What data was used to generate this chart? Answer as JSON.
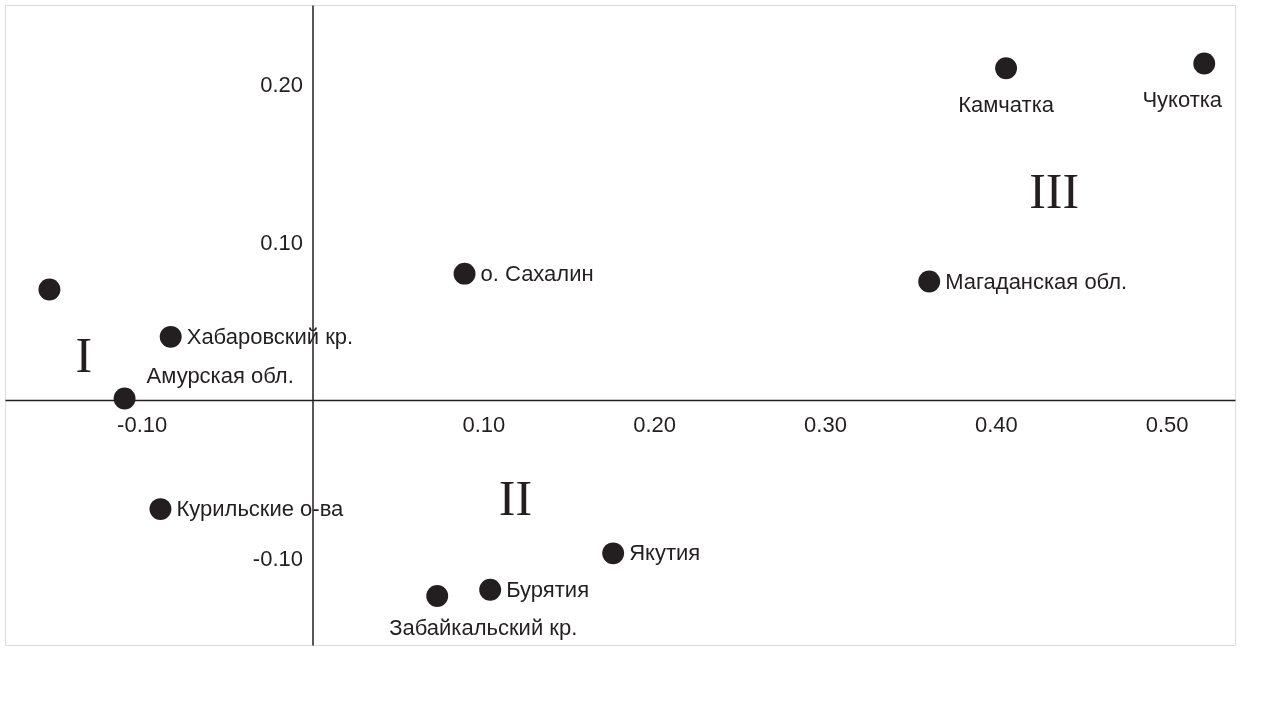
{
  "chart_data": {
    "type": "scatter",
    "x": [
      -0.154,
      -0.083,
      -0.11,
      -0.089,
      0.089,
      0.176,
      0.104,
      0.073,
      0.406,
      0.522,
      0.361
    ],
    "series": [
      {
        "color": "#231f20",
        "values": [
          0.07,
          0.04,
          0.001,
          -0.069,
          0.08,
          -0.097,
          -0.12,
          -0.124,
          0.21,
          0.213,
          0.075
        ],
        "value_labels": [
          null,
          "Хабаровский кр.",
          "Амурская обл.",
          "Курильские о-ва",
          "о. Сахалин",
          "Якутия",
          "Бурятия",
          "Забайкальский кр.",
          "Камчатка",
          "Чукотка",
          "Магаданская обл."
        ]
      }
    ],
    "annotations": [
      "I",
      "II",
      "III"
    ],
    "xlim": [
      -0.18,
      0.54
    ],
    "ylim": [
      -0.155,
      0.25
    ],
    "xticks": [
      {
        "value": -0.1,
        "label": "-0.10"
      },
      {
        "value": 0.1,
        "label": "0.10"
      },
      {
        "value": 0.2,
        "label": "0.20"
      },
      {
        "value": 0.3,
        "label": "0.30"
      },
      {
        "value": 0.4,
        "label": "0.40"
      },
      {
        "value": 0.5,
        "label": "0.50"
      }
    ],
    "yticks": [
      {
        "value": -0.1,
        "label": "-0.10"
      },
      {
        "value": 0.1,
        "label": "0.10"
      },
      {
        "value": 0.2,
        "label": "0.20"
      }
    ],
    "grid": false,
    "marker": "circle"
  }
}
